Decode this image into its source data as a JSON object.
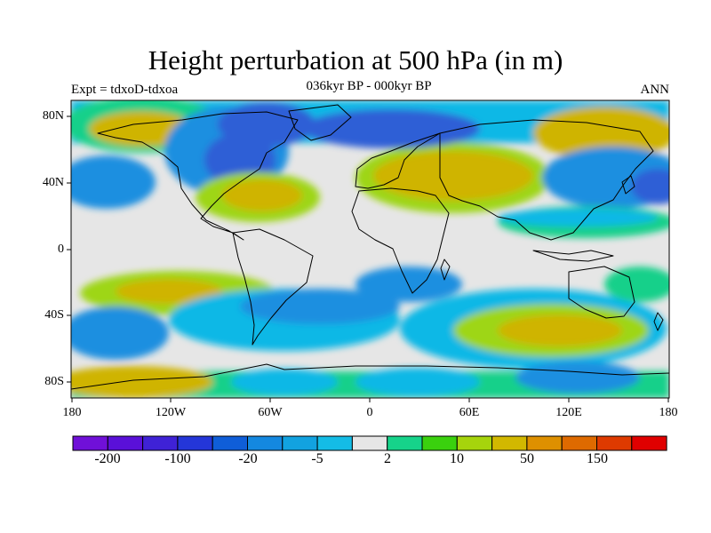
{
  "header": {
    "title": "Height perturbation at 500 hPa (in m)",
    "subtitle": "036kyr BP - 000kyr BP",
    "left_label": "Expt = tdxoD-tdxoa",
    "right_label": "ANN"
  },
  "map": {
    "lat_ticks": [
      "80N",
      "40N",
      "0",
      "40S",
      "80S"
    ],
    "lon_ticks": [
      "180",
      "120W",
      "60W",
      "0",
      "60E",
      "120E",
      "180"
    ],
    "colors": {
      "background": "#e6e6e6",
      "neg_strong": "#2e5fd6",
      "neg_mid": "#1e8fe0",
      "neg_weak": "#10b8e6",
      "pos_weak": "#18d08a",
      "pos_mid": "#9ed614",
      "pos_strong": "#cfb400",
      "coast": "#000000"
    }
  },
  "colorbar": {
    "colors": [
      "#7010d8",
      "#5a10d8",
      "#3f22d6",
      "#2436d8",
      "#0f5ed8",
      "#1488e0",
      "#12a2e0",
      "#14bce6",
      "#e6e6e6",
      "#16d38a",
      "#3ad10e",
      "#a6d40c",
      "#d2b800",
      "#de9000",
      "#de6a00",
      "#de3a00",
      "#e00000"
    ],
    "labels": [
      "-200",
      "-100",
      "-20",
      "-5",
      "2",
      "10",
      "50",
      "150"
    ]
  }
}
